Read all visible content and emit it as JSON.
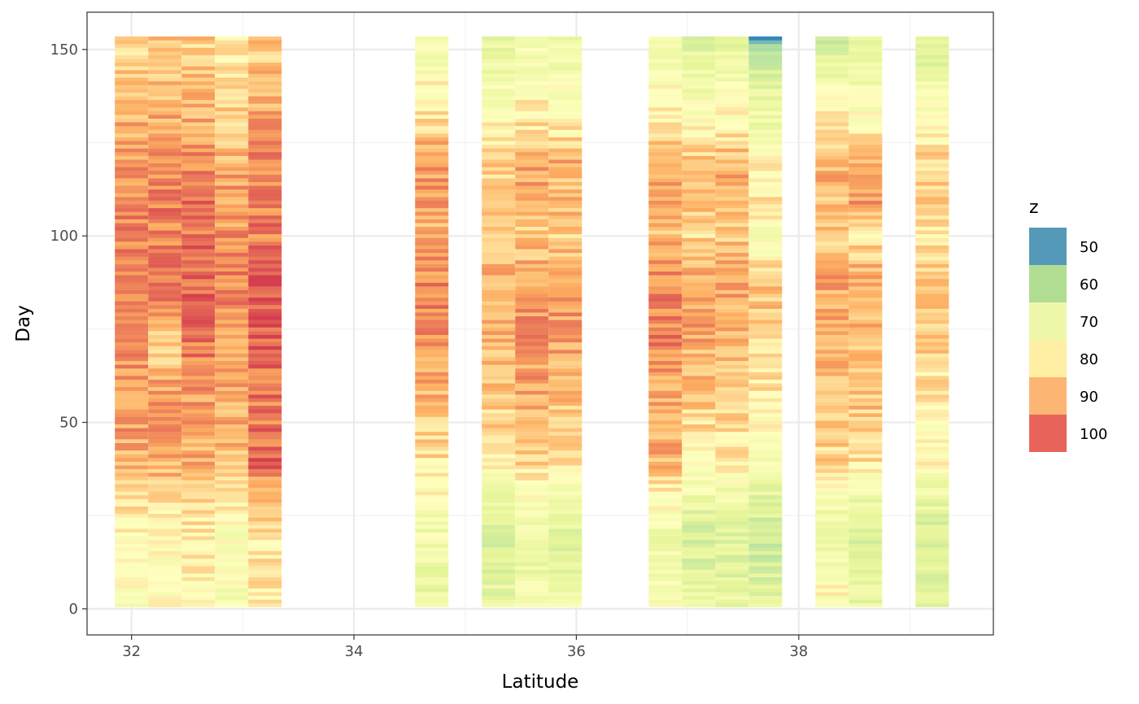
{
  "chart_data": {
    "type": "heatmap",
    "xlabel": "Latitude",
    "ylabel": "Day",
    "xlim": [
      31.6,
      39.75
    ],
    "ylim": [
      -7,
      160
    ],
    "x_ticks": [
      32,
      34,
      36,
      38
    ],
    "x_tick_labels": [
      "32",
      "34",
      "36",
      "38"
    ],
    "x_minor_ticks": [
      33,
      35,
      37,
      39
    ],
    "y_ticks": [
      0,
      50,
      100,
      150
    ],
    "y_tick_labels": [
      "0",
      "50",
      "100",
      "150"
    ],
    "y_minor_ticks": [
      25,
      75,
      125
    ],
    "grid": true,
    "tile_width": 0.3,
    "day_range": [
      1,
      153
    ],
    "columns_x": [
      32.0,
      32.3,
      32.6,
      32.9,
      33.2,
      34.7,
      35.3,
      35.6,
      35.9,
      36.8,
      37.1,
      37.4,
      37.7,
      38.3,
      38.6,
      39.2
    ],
    "column_profiles": [
      [
        [
          0,
          78
        ],
        [
          20,
          81
        ],
        [
          30,
          86
        ],
        [
          40,
          89
        ],
        [
          50,
          91
        ],
        [
          60,
          92
        ],
        [
          70,
          93
        ],
        [
          80,
          94
        ],
        [
          90,
          95
        ],
        [
          100,
          94
        ],
        [
          110,
          93
        ],
        [
          120,
          91
        ],
        [
          130,
          89
        ],
        [
          140,
          87
        ],
        [
          153,
          85
        ]
      ],
      [
        [
          0,
          80
        ],
        [
          20,
          79
        ],
        [
          30,
          85
        ],
        [
          40,
          90
        ],
        [
          50,
          92
        ],
        [
          60,
          90
        ],
        [
          70,
          85
        ],
        [
          80,
          92
        ],
        [
          90,
          94
        ],
        [
          100,
          93
        ],
        [
          110,
          94
        ],
        [
          120,
          92
        ],
        [
          130,
          90
        ],
        [
          140,
          88
        ],
        [
          153,
          87
        ]
      ],
      [
        [
          0,
          80
        ],
        [
          20,
          82
        ],
        [
          30,
          85
        ],
        [
          40,
          89
        ],
        [
          50,
          90
        ],
        [
          60,
          92
        ],
        [
          70,
          94
        ],
        [
          80,
          96
        ],
        [
          90,
          97
        ],
        [
          100,
          95
        ],
        [
          110,
          95
        ],
        [
          120,
          93
        ],
        [
          130,
          90
        ],
        [
          140,
          88
        ],
        [
          153,
          86
        ]
      ],
      [
        [
          0,
          77
        ],
        [
          20,
          78
        ],
        [
          30,
          83
        ],
        [
          40,
          88
        ],
        [
          50,
          89
        ],
        [
          60,
          90
        ],
        [
          70,
          91
        ],
        [
          80,
          93
        ],
        [
          90,
          94
        ],
        [
          100,
          92
        ],
        [
          110,
          91
        ],
        [
          120,
          89
        ],
        [
          130,
          86
        ],
        [
          140,
          84
        ],
        [
          153,
          82
        ]
      ],
      [
        [
          0,
          82
        ],
        [
          20,
          83
        ],
        [
          30,
          88
        ],
        [
          40,
          97
        ],
        [
          50,
          94
        ],
        [
          60,
          95
        ],
        [
          70,
          97
        ],
        [
          80,
          98
        ],
        [
          90,
          98
        ],
        [
          100,
          94
        ],
        [
          110,
          94
        ],
        [
          120,
          94
        ],
        [
          130,
          91
        ],
        [
          140,
          88
        ],
        [
          153,
          86
        ]
      ],
      [
        [
          0,
          72
        ],
        [
          20,
          75
        ],
        [
          30,
          80
        ],
        [
          40,
          84
        ],
        [
          50,
          86
        ],
        [
          60,
          90
        ],
        [
          70,
          92
        ],
        [
          80,
          93
        ],
        [
          90,
          93
        ],
        [
          100,
          88
        ],
        [
          110,
          92
        ],
        [
          120,
          91
        ],
        [
          130,
          85
        ],
        [
          140,
          80
        ],
        [
          153,
          75
        ]
      ],
      [
        [
          0,
          72
        ],
        [
          20,
          68
        ],
        [
          30,
          74
        ],
        [
          40,
          82
        ],
        [
          50,
          85
        ],
        [
          60,
          87
        ],
        [
          70,
          88
        ],
        [
          80,
          90
        ],
        [
          90,
          89
        ],
        [
          100,
          84
        ],
        [
          110,
          86
        ],
        [
          120,
          86
        ],
        [
          130,
          80
        ],
        [
          140,
          76
        ],
        [
          153,
          72
        ]
      ],
      [
        [
          0,
          75
        ],
        [
          20,
          73
        ],
        [
          30,
          78
        ],
        [
          40,
          86
        ],
        [
          50,
          88
        ],
        [
          60,
          90
        ],
        [
          70,
          92
        ],
        [
          80,
          91
        ],
        [
          90,
          90
        ],
        [
          100,
          86
        ],
        [
          110,
          90
        ],
        [
          120,
          91
        ],
        [
          130,
          84
        ],
        [
          140,
          79
        ],
        [
          153,
          75
        ]
      ],
      [
        [
          0,
          74
        ],
        [
          20,
          70
        ],
        [
          30,
          76
        ],
        [
          40,
          85
        ],
        [
          50,
          86
        ],
        [
          60,
          88
        ],
        [
          70,
          90
        ],
        [
          80,
          92
        ],
        [
          90,
          90
        ],
        [
          100,
          86
        ],
        [
          110,
          88
        ],
        [
          120,
          89
        ],
        [
          130,
          82
        ],
        [
          140,
          78
        ],
        [
          153,
          74
        ]
      ],
      [
        [
          0,
          79
        ],
        [
          20,
          74
        ],
        [
          30,
          80
        ],
        [
          40,
          89
        ],
        [
          50,
          90
        ],
        [
          60,
          91
        ],
        [
          70,
          93
        ],
        [
          80,
          94
        ],
        [
          90,
          93
        ],
        [
          100,
          88
        ],
        [
          110,
          91
        ],
        [
          120,
          90
        ],
        [
          130,
          84
        ],
        [
          140,
          79
        ],
        [
          153,
          74
        ]
      ],
      [
        [
          0,
          73
        ],
        [
          20,
          68
        ],
        [
          30,
          74
        ],
        [
          40,
          82
        ],
        [
          50,
          85
        ],
        [
          60,
          87
        ],
        [
          70,
          89
        ],
        [
          80,
          91
        ],
        [
          90,
          90
        ],
        [
          100,
          85
        ],
        [
          110,
          88
        ],
        [
          120,
          87
        ],
        [
          130,
          80
        ],
        [
          140,
          75
        ],
        [
          153,
          70
        ]
      ],
      [
        [
          0,
          72
        ],
        [
          20,
          69
        ],
        [
          30,
          74
        ],
        [
          40,
          82
        ],
        [
          50,
          85
        ],
        [
          60,
          87
        ],
        [
          70,
          88
        ],
        [
          80,
          90
        ],
        [
          90,
          90
        ],
        [
          100,
          86
        ],
        [
          110,
          89
        ],
        [
          120,
          89
        ],
        [
          130,
          82
        ],
        [
          140,
          77
        ],
        [
          153,
          71
        ]
      ],
      [
        [
          0,
          70
        ],
        [
          20,
          66
        ],
        [
          30,
          71
        ],
        [
          40,
          78
        ],
        [
          50,
          80
        ],
        [
          60,
          83
        ],
        [
          70,
          85
        ],
        [
          80,
          87
        ],
        [
          90,
          86
        ],
        [
          100,
          78
        ],
        [
          110,
          83
        ],
        [
          120,
          80
        ],
        [
          130,
          75
        ],
        [
          140,
          72
        ],
        [
          153,
          55
        ]
      ],
      [
        [
          0,
          82
        ],
        [
          20,
          72
        ],
        [
          30,
          77
        ],
        [
          40,
          85
        ],
        [
          50,
          87
        ],
        [
          60,
          88
        ],
        [
          70,
          89
        ],
        [
          80,
          90
        ],
        [
          90,
          90
        ],
        [
          100,
          86
        ],
        [
          110,
          88
        ],
        [
          120,
          89
        ],
        [
          130,
          83
        ],
        [
          140,
          76
        ],
        [
          153,
          67
        ]
      ],
      [
        [
          0,
          73
        ],
        [
          20,
          70
        ],
        [
          30,
          74
        ],
        [
          40,
          84
        ],
        [
          50,
          86
        ],
        [
          60,
          88
        ],
        [
          70,
          87
        ],
        [
          80,
          89
        ],
        [
          90,
          90
        ],
        [
          100,
          83
        ],
        [
          110,
          92
        ],
        [
          120,
          88
        ],
        [
          130,
          80
        ],
        [
          140,
          76
        ],
        [
          153,
          72
        ]
      ],
      [
        [
          0,
          71
        ],
        [
          20,
          68
        ],
        [
          30,
          73
        ],
        [
          40,
          80
        ],
        [
          50,
          82
        ],
        [
          60,
          84
        ],
        [
          70,
          86
        ],
        [
          80,
          87
        ],
        [
          90,
          86
        ],
        [
          100,
          82
        ],
        [
          110,
          85
        ],
        [
          120,
          86
        ],
        [
          130,
          79
        ],
        [
          140,
          74
        ],
        [
          153,
          69
        ]
      ]
    ],
    "legend": {
      "title": "z",
      "entries": [
        {
          "label": "50",
          "color": "#5499B8"
        },
        {
          "label": "60",
          "color": "#B0DD92"
        },
        {
          "label": "70",
          "color": "#EEF7A9"
        },
        {
          "label": "80",
          "color": "#FEEFA4"
        },
        {
          "label": "90",
          "color": "#FDB574"
        },
        {
          "label": "100",
          "color": "#E8645A"
        }
      ]
    },
    "color_scale": [
      [
        50,
        "#3288BD"
      ],
      [
        60,
        "#ABDDA4"
      ],
      [
        70,
        "#E6F598"
      ],
      [
        80,
        "#FFFFBF"
      ],
      [
        90,
        "#FDAE61"
      ],
      [
        100,
        "#D53E4F"
      ]
    ]
  }
}
